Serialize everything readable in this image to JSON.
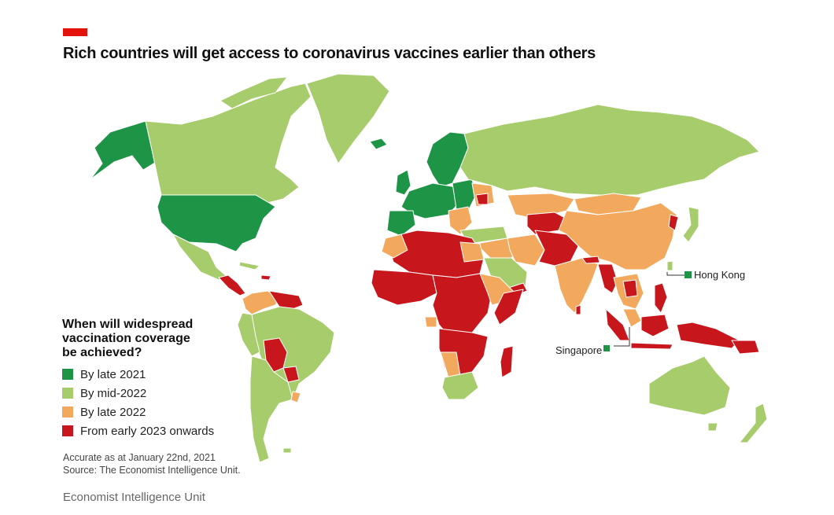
{
  "title": "Rich countries will get access to coronavirus vaccines earlier than others",
  "legend": {
    "title_lines": [
      "When will widespread",
      "vaccination coverage",
      "be achieved?"
    ],
    "items": [
      {
        "label": "By late 2021",
        "color": "#1e9447"
      },
      {
        "label": "By mid-2022",
        "color": "#a7cc6c"
      },
      {
        "label": "By late 2022",
        "color": "#f2a95e"
      },
      {
        "label": "From early 2023 onwards",
        "color": "#c8161d"
      }
    ]
  },
  "callouts": {
    "hong_kong": "Hong Kong",
    "singapore": "Singapore"
  },
  "notes": {
    "accurate": "Accurate as at January 22nd, 2021",
    "source": "Source: The Economist Intelligence Unit."
  },
  "footer": "Economist Intelligence Unit",
  "colors": {
    "brand_red": "#e3120b",
    "ocean": "#ffffff",
    "border": "#ffffff"
  }
}
